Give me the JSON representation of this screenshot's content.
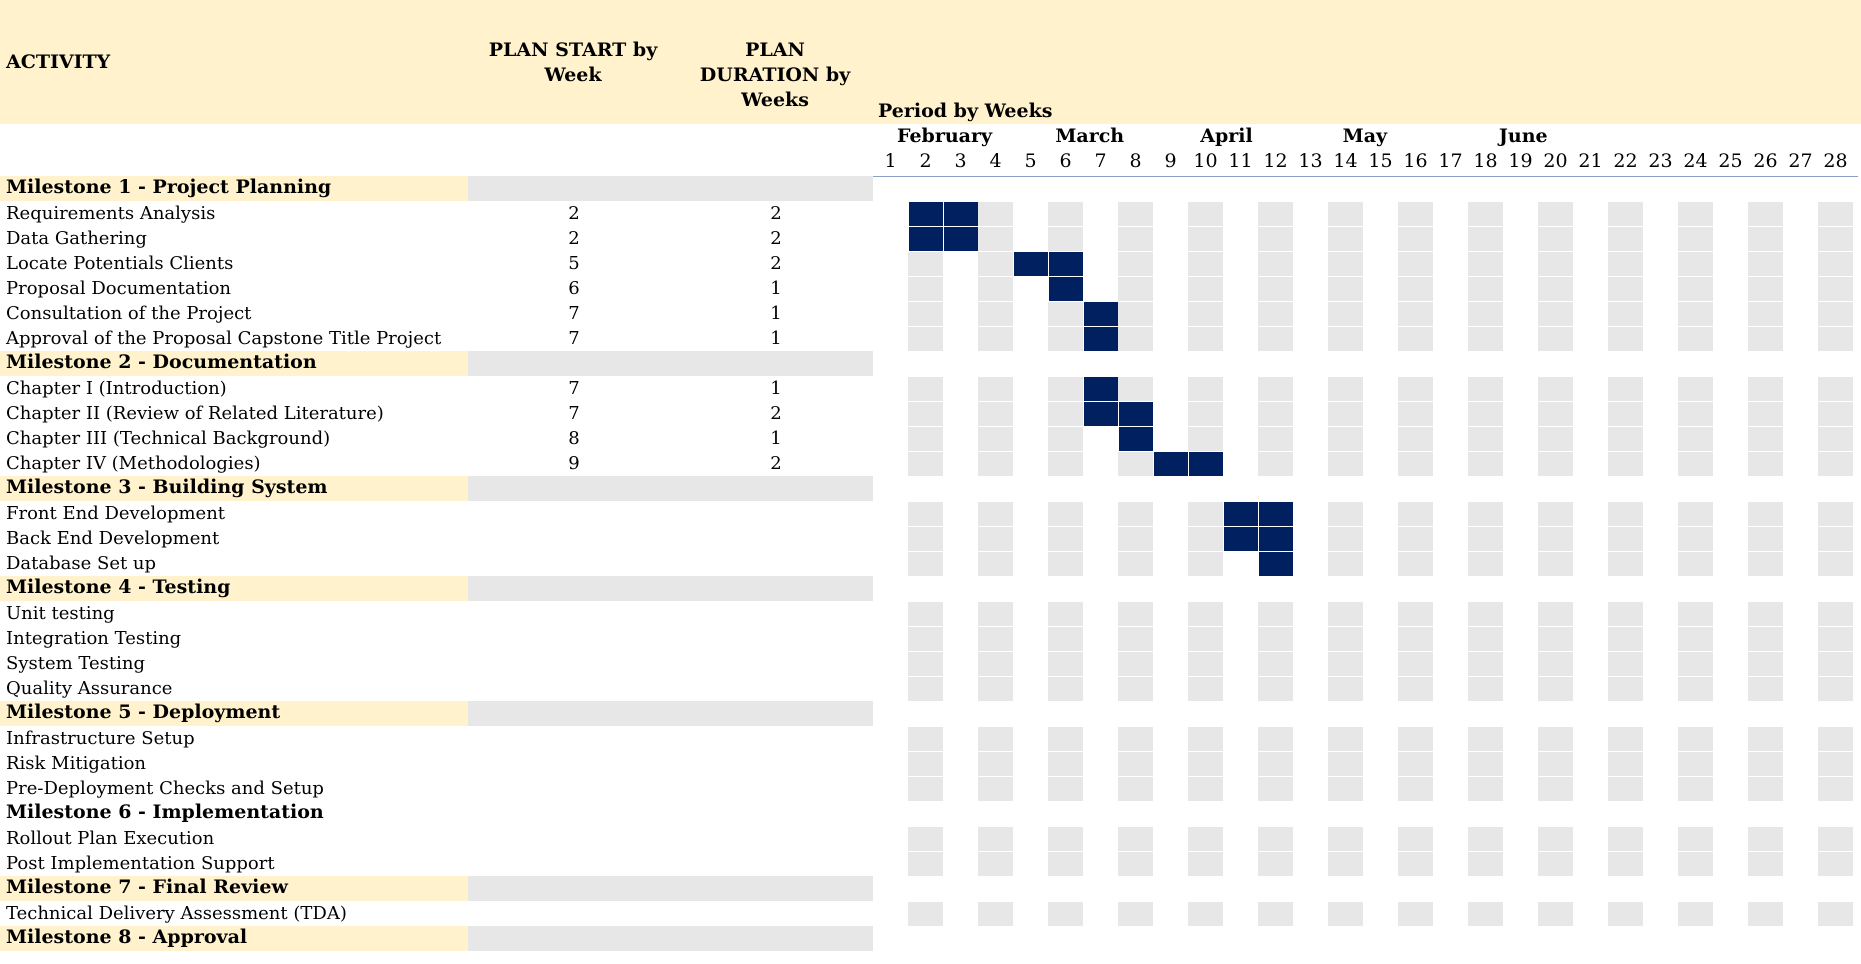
{
  "colors": {
    "header_bg": "#fff2cc",
    "milestone_bg": "#fff2cc",
    "milestone_grey": "#e7e7e7",
    "grid_grey": "#e7e7e7",
    "bar": "#002060",
    "underline": "#8ea0c8"
  },
  "headers": {
    "activity": "ACTIVITY",
    "plan_start": "PLAN START by Week",
    "plan_duration": "PLAN DURATION by Weeks",
    "period": "Period by Weeks"
  },
  "months": [
    "February",
    "March",
    "April",
    "May",
    "June"
  ],
  "weeks": [
    1,
    2,
    3,
    4,
    5,
    6,
    7,
    8,
    9,
    10,
    11,
    12,
    13,
    14,
    15,
    16,
    17,
    18,
    19,
    20,
    21,
    22,
    23,
    24,
    25,
    26,
    27,
    28
  ],
  "rows": [
    {
      "type": "milestone",
      "label": "Milestone 1 - Project Planning"
    },
    {
      "type": "task",
      "label": "Requirements Analysis",
      "start": "2",
      "duration": "2"
    },
    {
      "type": "task",
      "label": "Data Gathering",
      "start": "2",
      "duration": "2"
    },
    {
      "type": "task",
      "label": "Locate Potentials Clients",
      "start": "5",
      "duration": "2"
    },
    {
      "type": "task",
      "label": "Proposal Documentation",
      "start": "6",
      "duration": "1"
    },
    {
      "type": "task",
      "label": "Consultation of the Project",
      "start": "7",
      "duration": "1"
    },
    {
      "type": "task",
      "label": "Approval of the Proposal Capstone Title Project",
      "start": "7",
      "duration": "1"
    },
    {
      "type": "milestone",
      "label": "Milestone 2 - Documentation"
    },
    {
      "type": "task",
      "label": "Chapter I (Introduction)",
      "start": "7",
      "duration": "1"
    },
    {
      "type": "task",
      "label": "Chapter II  (Review of Related Literature)",
      "start": "7",
      "duration": "2"
    },
    {
      "type": "task",
      "label": "Chapter III (Technical Background)",
      "start": "8",
      "duration": "1"
    },
    {
      "type": "task",
      "label": "Chapter IV (Methodologies)",
      "start": "9",
      "duration": "2"
    },
    {
      "type": "milestone",
      "label": "Milestone 3 - Building System"
    },
    {
      "type": "task",
      "label": "Front End Development",
      "start": "",
      "duration": "",
      "bar_weeks": [
        11,
        12
      ]
    },
    {
      "type": "task",
      "label": "Back End Development",
      "start": "",
      "duration": "",
      "bar_weeks": [
        11,
        12
      ]
    },
    {
      "type": "task",
      "label": "Database Set up",
      "start": "",
      "duration": "",
      "bar_weeks": [
        12
      ]
    },
    {
      "type": "milestone",
      "label": "Milestone 4 - Testing"
    },
    {
      "type": "task",
      "label": "Unit testing",
      "start": "",
      "duration": ""
    },
    {
      "type": "task",
      "label": "Integration Testing",
      "start": "",
      "duration": ""
    },
    {
      "type": "task",
      "label": "System Testing",
      "start": "",
      "duration": ""
    },
    {
      "type": "task",
      "label": "Quality Assurance",
      "start": "",
      "duration": ""
    },
    {
      "type": "milestone",
      "label": "Milestone 5 - Deployment"
    },
    {
      "type": "task",
      "label": "Infrastructure Setup",
      "start": "",
      "duration": ""
    },
    {
      "type": "task",
      "label": "Risk Mitigation",
      "start": "",
      "duration": ""
    },
    {
      "type": "task",
      "label": "Pre-Deployment Checks and Setup",
      "start": "",
      "duration": ""
    },
    {
      "type": "milestone",
      "label": "Milestone 6 - Implementation",
      "plain": true
    },
    {
      "type": "task",
      "label": "Rollout Plan Execution",
      "start": "",
      "duration": ""
    },
    {
      "type": "task",
      "label": "Post Implementation Support",
      "start": "",
      "duration": ""
    },
    {
      "type": "milestone",
      "label": "Milestone 7 - Final Review"
    },
    {
      "type": "task",
      "label": "Technical Delivery Assessment (TDA)",
      "start": "",
      "duration": ""
    },
    {
      "type": "milestone",
      "label": "Milestone 8 - Approval"
    }
  ]
}
